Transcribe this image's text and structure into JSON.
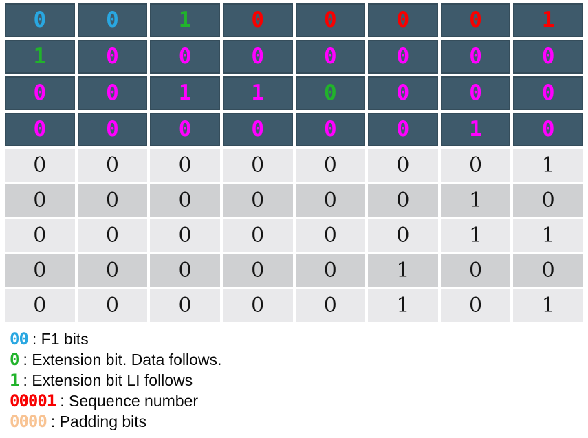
{
  "colors": {
    "blue": "#29A7E1",
    "green": "#21B32B",
    "red": "#F80000",
    "magenta": "#FF00FF",
    "black": "#141414",
    "orange": "#F8C393",
    "dark_row_bg": "#3E5A6B",
    "light_row_a_bg": "#E9E9EB",
    "light_row_b_bg": "#CFD0D2"
  },
  "table": {
    "rows": [
      {
        "style": "dark",
        "cells": [
          {
            "v": "0",
            "c": "blue"
          },
          {
            "v": "0",
            "c": "blue"
          },
          {
            "v": "1",
            "c": "green"
          },
          {
            "v": "0",
            "c": "red"
          },
          {
            "v": "0",
            "c": "red"
          },
          {
            "v": "0",
            "c": "red"
          },
          {
            "v": "0",
            "c": "red"
          },
          {
            "v": "1",
            "c": "red"
          }
        ]
      },
      {
        "style": "dark",
        "cells": [
          {
            "v": "1",
            "c": "green"
          },
          {
            "v": "0",
            "c": "magenta"
          },
          {
            "v": "0",
            "c": "magenta"
          },
          {
            "v": "0",
            "c": "magenta"
          },
          {
            "v": "0",
            "c": "magenta"
          },
          {
            "v": "0",
            "c": "magenta"
          },
          {
            "v": "0",
            "c": "magenta"
          },
          {
            "v": "0",
            "c": "magenta"
          }
        ]
      },
      {
        "style": "dark",
        "cells": [
          {
            "v": "0",
            "c": "magenta"
          },
          {
            "v": "0",
            "c": "magenta"
          },
          {
            "v": "1",
            "c": "magenta"
          },
          {
            "v": "1",
            "c": "magenta"
          },
          {
            "v": "0",
            "c": "green"
          },
          {
            "v": "0",
            "c": "magenta"
          },
          {
            "v": "0",
            "c": "magenta"
          },
          {
            "v": "0",
            "c": "magenta"
          }
        ]
      },
      {
        "style": "dark",
        "cells": [
          {
            "v": "0",
            "c": "magenta"
          },
          {
            "v": "0",
            "c": "magenta"
          },
          {
            "v": "0",
            "c": "magenta"
          },
          {
            "v": "0",
            "c": "magenta"
          },
          {
            "v": "0",
            "c": "magenta"
          },
          {
            "v": "0",
            "c": "magenta"
          },
          {
            "v": "1",
            "c": "magenta"
          },
          {
            "v": "0",
            "c": "magenta"
          }
        ]
      },
      {
        "style": "light-a",
        "cells": [
          {
            "v": "0",
            "c": "black"
          },
          {
            "v": "0",
            "c": "black"
          },
          {
            "v": "0",
            "c": "black"
          },
          {
            "v": "0",
            "c": "black"
          },
          {
            "v": "0",
            "c": "black"
          },
          {
            "v": "0",
            "c": "black"
          },
          {
            "v": "0",
            "c": "black"
          },
          {
            "v": "1",
            "c": "black"
          }
        ]
      },
      {
        "style": "light-b",
        "cells": [
          {
            "v": "0",
            "c": "black"
          },
          {
            "v": "0",
            "c": "black"
          },
          {
            "v": "0",
            "c": "black"
          },
          {
            "v": "0",
            "c": "black"
          },
          {
            "v": "0",
            "c": "black"
          },
          {
            "v": "0",
            "c": "black"
          },
          {
            "v": "1",
            "c": "black"
          },
          {
            "v": "0",
            "c": "black"
          }
        ]
      },
      {
        "style": "light-a",
        "cells": [
          {
            "v": "0",
            "c": "black"
          },
          {
            "v": "0",
            "c": "black"
          },
          {
            "v": "0",
            "c": "black"
          },
          {
            "v": "0",
            "c": "black"
          },
          {
            "v": "0",
            "c": "black"
          },
          {
            "v": "0",
            "c": "black"
          },
          {
            "v": "1",
            "c": "black"
          },
          {
            "v": "1",
            "c": "black"
          }
        ]
      },
      {
        "style": "light-b",
        "cells": [
          {
            "v": "0",
            "c": "black"
          },
          {
            "v": "0",
            "c": "black"
          },
          {
            "v": "0",
            "c": "black"
          },
          {
            "v": "0",
            "c": "black"
          },
          {
            "v": "0",
            "c": "black"
          },
          {
            "v": "1",
            "c": "black"
          },
          {
            "v": "0",
            "c": "black"
          },
          {
            "v": "0",
            "c": "black"
          }
        ]
      },
      {
        "style": "light-a",
        "cells": [
          {
            "v": "0",
            "c": "black"
          },
          {
            "v": "0",
            "c": "black"
          },
          {
            "v": "0",
            "c": "black"
          },
          {
            "v": "0",
            "c": "black"
          },
          {
            "v": "0",
            "c": "black"
          },
          {
            "v": "1",
            "c": "black"
          },
          {
            "v": "0",
            "c": "black"
          },
          {
            "v": "1",
            "c": "black"
          }
        ]
      }
    ]
  },
  "legend": {
    "items": [
      {
        "bits": "00",
        "color": "blue",
        "label": ": F1 bits"
      },
      {
        "bits": "0",
        "color": "green",
        "label": ": Extension bit. Data follows."
      },
      {
        "bits": "1",
        "color": "green",
        "label": ": Extension bit LI follows"
      },
      {
        "bits": "00001",
        "color": "red",
        "label": ": Sequence number"
      },
      {
        "bits": "0000",
        "color": "orange",
        "label": ": Padding bits"
      }
    ]
  }
}
